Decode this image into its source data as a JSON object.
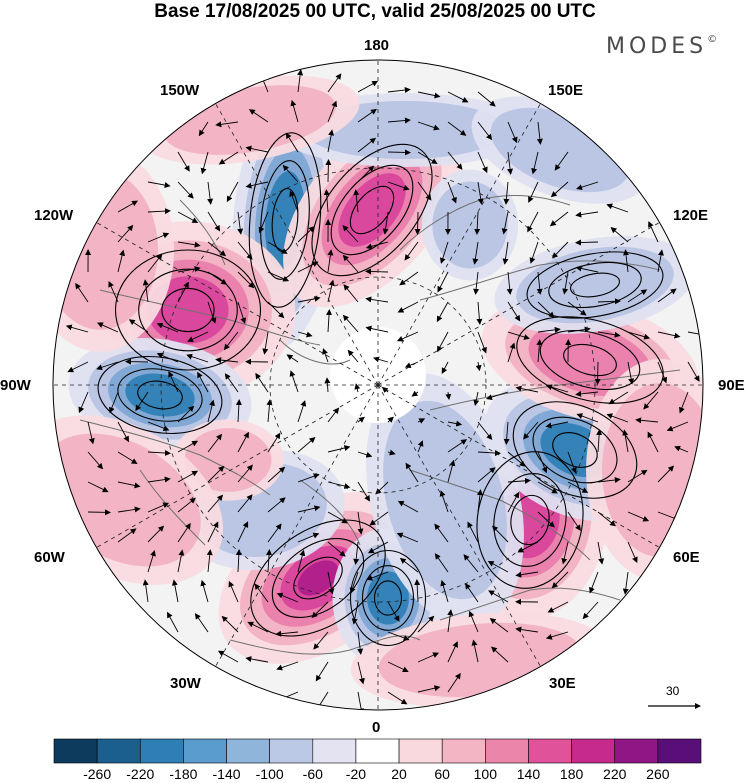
{
  "title": "Base 17/08/2025 00 UTC, valid 25/08/2025 00 UTC",
  "brand": "MODES",
  "brand_mark": "©",
  "longitude_labels": {
    "top": "180",
    "bottom": "0",
    "left": "90W",
    "right": "90E",
    "upper_left_1": "150W",
    "upper_left_2": "120W",
    "upper_right_1": "150E",
    "upper_right_2": "120E",
    "lower_left_1": "60W",
    "lower_left_2": "30W",
    "lower_right_1": "60E",
    "lower_right_2": "30E"
  },
  "reference_vector": {
    "label": "30"
  },
  "colorbar": {
    "labels": [
      "-260",
      "-220",
      "-180",
      "-140",
      "-100",
      "-60",
      "-20",
      "20",
      "60",
      "100",
      "140",
      "180",
      "220",
      "260"
    ],
    "colors": [
      "#0d3b5e",
      "#1b5f8e",
      "#2f7fb5",
      "#5a9ccd",
      "#8fb5da",
      "#bcc9e6",
      "#e3e3f2",
      "#ffffff",
      "#f9d9de",
      "#f3b4c4",
      "#ec85aa",
      "#e0529a",
      "#c62a8a",
      "#8f1684",
      "#5a0f78"
    ]
  },
  "map_colors": {
    "neg_light": "#dfe0f0",
    "neg_mid": "#b7c4e3",
    "neg_strong": "#7ea7d4",
    "neg_core": "#2f7fb5",
    "neg_deep": "#1b5f8e",
    "pos_light": "#f9dbe0",
    "pos_mid": "#f2b2c3",
    "pos_strong": "#ea7fac",
    "pos_core": "#d9449c",
    "pos_deep": "#b01f8a",
    "land_grey": "#e4e4e4"
  },
  "anomalies": [
    {
      "label": "north-pacific-low",
      "value": -200
    },
    {
      "label": "bering-high",
      "value": 160
    },
    {
      "label": "alaska-gulf-high",
      "value": 180
    },
    {
      "label": "canada-low",
      "value": -160
    },
    {
      "label": "north-atlantic-high",
      "value": 220
    },
    {
      "label": "europe-low",
      "value": -180
    },
    {
      "label": "ural-high",
      "value": 200
    },
    {
      "label": "central-siberia-low",
      "value": -200
    },
    {
      "label": "north-siberia-high",
      "value": 120
    },
    {
      "label": "east-siberia-low",
      "value": -100
    }
  ]
}
